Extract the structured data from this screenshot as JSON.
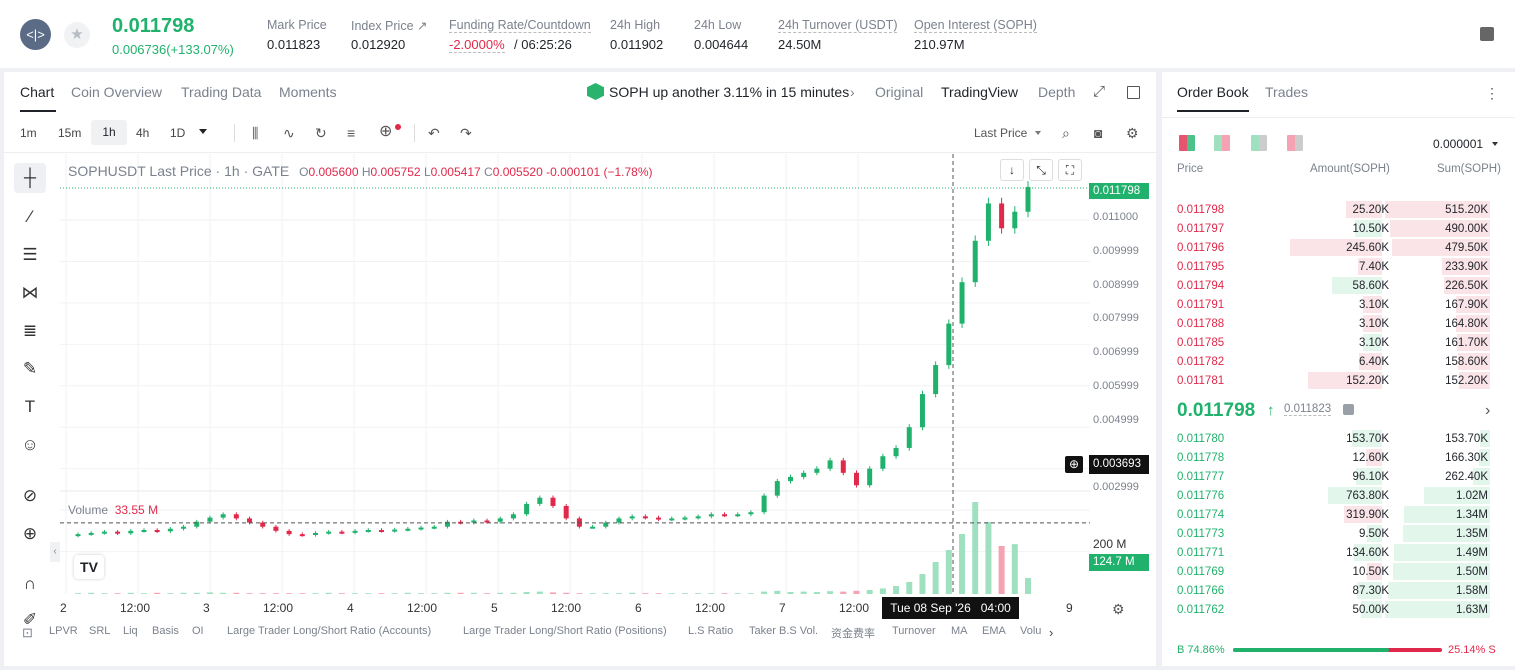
{
  "header": {
    "last_price": "0.011798",
    "change": "0.006736(+133.07%)",
    "stats": [
      {
        "label": "Mark Price",
        "value": "0.011823"
      },
      {
        "label": "Index Price ↗",
        "value": "0.012920"
      },
      {
        "label": "Funding Rate/Countdown",
        "value_rate": "-2.0000%",
        "value_time": "/ 06:25:26"
      },
      {
        "label": "24h High",
        "value": "0.011902"
      },
      {
        "label": "24h Low",
        "value": "0.004644"
      },
      {
        "label": "24h Turnover (USDT)",
        "value": "24.50M"
      },
      {
        "label": "Open Interest (SOPH)",
        "value": "210.97M"
      }
    ]
  },
  "chart_tabs": [
    "Chart",
    "Coin Overview",
    "Trading Data",
    "Moments"
  ],
  "alert": "SOPH up another 3.11% in 15 minutes",
  "view_tabs": [
    "Original",
    "TradingView",
    "Depth"
  ],
  "intervals": [
    "1m",
    "15m",
    "1h",
    "4h",
    "1D"
  ],
  "price_type": "Last Price",
  "legend": {
    "symbol": "SOPHUSDT Last Price · 1h · GATE",
    "o_label": "O",
    "o": "0.005600",
    "h_label": "H",
    "h": "0.005752",
    "l_label": "L",
    "l": "0.005417",
    "c_label": "C",
    "c": "0.005520",
    "chg": "-0.000101 (−1.78%)"
  },
  "volume_label": "Volume",
  "volume_value": "33.55 M",
  "crosshair_label": "Tue 08 Sep '26   04:00",
  "price_tags": {
    "last": "0.011798",
    "cursor": "0.003693",
    "volume": "124.7 M",
    "vol_axis": "200 M"
  },
  "chart_data": {
    "type": "candlestick",
    "symbol": "SOPHUSDT",
    "interval": "1h",
    "y_ticks": [
      "0.011000",
      "0.009999",
      "0.008999",
      "0.007999",
      "0.006999",
      "0.005999",
      "0.004999",
      "0.003999",
      "0.002999"
    ],
    "x_ticks": [
      "2",
      "12:00",
      "3",
      "12:00",
      "4",
      "12:00",
      "5",
      "12:00",
      "6",
      "12:00",
      "7",
      "12:00",
      "9"
    ],
    "close_series": [
      0.00342,
      0.00345,
      0.00348,
      0.00344,
      0.0035,
      0.00352,
      0.00349,
      0.00355,
      0.0036,
      0.00372,
      0.00382,
      0.0039,
      0.0038,
      0.0037,
      0.0036,
      0.0035,
      0.00342,
      0.0034,
      0.00345,
      0.00348,
      0.00346,
      0.0035,
      0.00352,
      0.0035,
      0.00353,
      0.00355,
      0.00358,
      0.0036,
      0.00372,
      0.0037,
      0.00375,
      0.00372,
      0.0038,
      0.0039,
      0.00415,
      0.0043,
      0.0041,
      0.0038,
      0.0036,
      0.0036,
      0.0037,
      0.0038,
      0.00385,
      0.00382,
      0.00378,
      0.0038,
      0.00382,
      0.00385,
      0.0039,
      0.00388,
      0.0039,
      0.00395,
      0.00435,
      0.0047,
      0.0048,
      0.0049,
      0.005,
      0.0052,
      0.0049,
      0.0046,
      0.005,
      0.0053,
      0.0055,
      0.006,
      0.0068,
      0.0075,
      0.0085,
      0.0095,
      0.0105,
      0.0114,
      0.0108,
      0.0112,
      0.011798
    ],
    "volume_series": [
      2,
      3,
      2,
      2,
      3,
      2,
      3,
      2,
      3,
      3,
      4,
      3,
      3,
      2,
      2,
      2,
      2,
      2,
      2,
      3,
      2,
      2,
      2,
      2,
      2,
      3,
      2,
      2,
      3,
      3,
      3,
      2,
      3,
      3,
      5,
      6,
      4,
      3,
      2,
      2,
      2,
      2,
      3,
      2,
      2,
      2,
      2,
      2,
      2,
      2,
      2,
      2,
      6,
      8,
      5,
      6,
      5,
      7,
      6,
      8,
      10,
      14,
      20,
      30,
      50,
      80,
      110,
      150,
      230,
      180,
      120,
      124.7,
      40
    ]
  },
  "tools": [
    "crosshair-icon",
    "trend-line-icon",
    "channel-icon",
    "pattern-icon",
    "fib-icon",
    "brush-icon",
    "text-icon",
    "emoji-icon",
    "ruler-icon",
    "zoom-in-icon",
    "magnet-icon",
    "pencil-icon"
  ],
  "indicators": [
    "LPVR",
    "SRL",
    "Liq",
    "Basis",
    "OI",
    "Large Trader Long/Short Ratio (Accounts)",
    "Large Trader Long/Short Ratio (Positions)",
    "L.S Ratio",
    "Taker B.S Vol.",
    "资金费率",
    "Turnover",
    "MA",
    "EMA",
    "Volu"
  ],
  "orderbook": {
    "tabs": [
      "Order Book",
      "Trades"
    ],
    "precision": "0.000001",
    "headers": [
      "Price",
      "Amount(SOPH)",
      "Sum(SOPH)"
    ],
    "asks": [
      {
        "price": "0.011798",
        "amount": "25.20K",
        "sum": "515.20K"
      },
      {
        "price": "0.011797",
        "amount": "10.50K",
        "sum": "490.00K"
      },
      {
        "price": "0.011796",
        "amount": "245.60K",
        "sum": "479.50K"
      },
      {
        "price": "0.011795",
        "amount": "7.40K",
        "sum": "233.90K"
      },
      {
        "price": "0.011794",
        "amount": "58.60K",
        "sum": "226.50K"
      },
      {
        "price": "0.011791",
        "amount": "3.10K",
        "sum": "167.90K"
      },
      {
        "price": "0.011788",
        "amount": "3.10K",
        "sum": "164.80K"
      },
      {
        "price": "0.011785",
        "amount": "3.10K",
        "sum": "161.70K"
      },
      {
        "price": "0.011782",
        "amount": "6.40K",
        "sum": "158.60K"
      },
      {
        "price": "0.011781",
        "amount": "152.20K",
        "sum": "152.20K"
      }
    ],
    "mid_price": "0.011798",
    "mark_price": "0.011823",
    "bids": [
      {
        "price": "0.011780",
        "amount": "153.70K",
        "sum": "153.70K"
      },
      {
        "price": "0.011778",
        "amount": "12.60K",
        "sum": "166.30K"
      },
      {
        "price": "0.011777",
        "amount": "96.10K",
        "sum": "262.40K"
      },
      {
        "price": "0.011776",
        "amount": "763.80K",
        "sum": "1.02M"
      },
      {
        "price": "0.011774",
        "amount": "319.90K",
        "sum": "1.34M"
      },
      {
        "price": "0.011773",
        "amount": "9.50K",
        "sum": "1.35M"
      },
      {
        "price": "0.011771",
        "amount": "134.60K",
        "sum": "1.49M"
      },
      {
        "price": "0.011769",
        "amount": "10.50K",
        "sum": "1.50M"
      },
      {
        "price": "0.011766",
        "amount": "87.30K",
        "sum": "1.58M"
      },
      {
        "price": "0.011762",
        "amount": "50.00K",
        "sum": "1.63M"
      }
    ],
    "buy_ratio_label": "B 74.86%",
    "sell_ratio_label": "25.14% S",
    "buy_ratio": 0.7486
  },
  "colors": {
    "up": "#20b26c",
    "down": "#e0294a",
    "accent": "#20b26c"
  }
}
